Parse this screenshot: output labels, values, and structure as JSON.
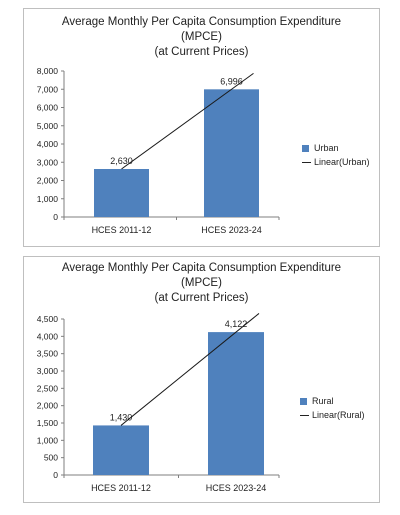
{
  "chart_data": [
    {
      "type": "bar",
      "title_lines": [
        "Average Monthly Per Capita Consumption Expenditure",
        "(MPCE)",
        "(at Current Prices)"
      ],
      "categories": [
        "HCES 2011-12",
        "HCES 2023-24"
      ],
      "series": [
        {
          "name": "Urban",
          "values": [
            2630,
            6996
          ],
          "value_labels": [
            "2,630",
            "6,996"
          ]
        }
      ],
      "trendline": {
        "name": "Linear(Urban)",
        "type": "linear"
      },
      "ylim": [
        0,
        8000
      ],
      "yticks": [
        0,
        1000,
        2000,
        3000,
        4000,
        5000,
        6000,
        7000,
        8000
      ],
      "ytick_labels": [
        "0",
        "1,000",
        "2,000",
        "3,000",
        "4,000",
        "5,000",
        "6,000",
        "7,000",
        "8,000"
      ],
      "xlabel": "",
      "ylabel": "",
      "grid": false,
      "legend_position": "right",
      "color": "#4f81bd"
    },
    {
      "type": "bar",
      "title_lines": [
        "Average Monthly Per Capita Consumption Expenditure",
        "(MPCE)",
        "(at Current Prices)"
      ],
      "categories": [
        "HCES 2011-12",
        "HCES 2023-24"
      ],
      "series": [
        {
          "name": "Rural",
          "values": [
            1430,
            4122
          ],
          "value_labels": [
            "1,430",
            "4,122"
          ]
        }
      ],
      "trendline": {
        "name": "Linear(Rural)",
        "type": "linear"
      },
      "ylim": [
        0,
        4500
      ],
      "yticks": [
        0,
        500,
        1000,
        1500,
        2000,
        2500,
        3000,
        3500,
        4000,
        4500
      ],
      "ytick_labels": [
        "0",
        "500",
        "1,000",
        "1,500",
        "2,000",
        "2,500",
        "3,000",
        "3,500",
        "4,000",
        "4,500"
      ],
      "xlabel": "",
      "ylabel": "",
      "grid": false,
      "legend_position": "right",
      "color": "#4f81bd"
    }
  ]
}
